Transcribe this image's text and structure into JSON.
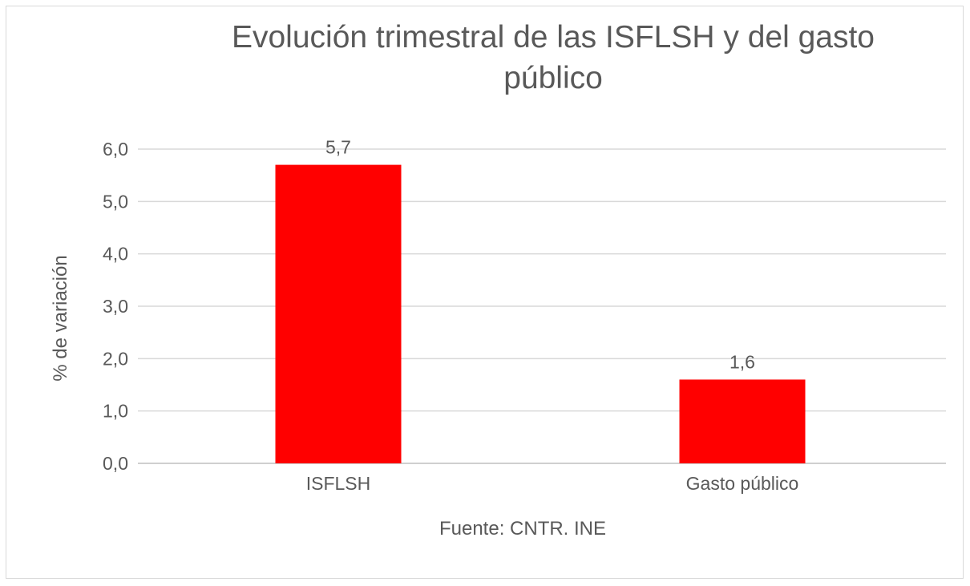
{
  "chart_data": {
    "type": "bar",
    "title": "Evolución trimestral de las ISFLSH y del gasto público",
    "title_lines": [
      "Evolución trimestral de las ISFLSH y del gasto",
      "público"
    ],
    "categories": [
      "ISFLSH",
      "Gasto público"
    ],
    "values": [
      5.7,
      1.6
    ],
    "data_labels": [
      "5,7",
      "1,6"
    ],
    "ylabel": "% de variación",
    "xlabel": "Fuente: CNTR. INE",
    "ylim": [
      0,
      6
    ],
    "yticks": [
      "0,0",
      "1,0",
      "2,0",
      "3,0",
      "4,0",
      "5,0",
      "6,0"
    ],
    "grid": true,
    "bar_color": "#FF0000"
  }
}
